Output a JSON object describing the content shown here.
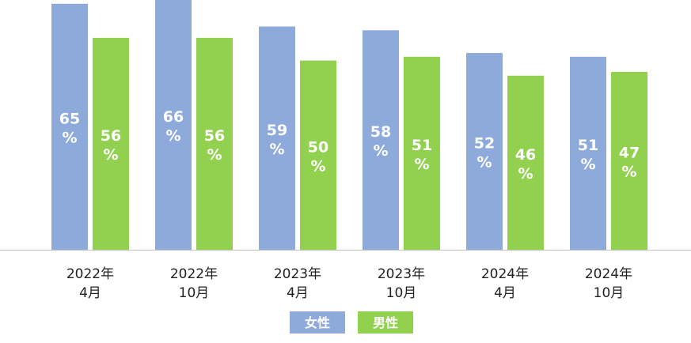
{
  "chart_data": {
    "type": "bar",
    "categories": [
      [
        "2022年",
        "4月"
      ],
      [
        "2022年",
        "10月"
      ],
      [
        "2023年",
        "4月"
      ],
      [
        "2023年",
        "10月"
      ],
      [
        "2024年",
        "4月"
      ],
      [
        "2024年",
        "10月"
      ]
    ],
    "series": [
      {
        "name": "女性",
        "color": "#8eaadb",
        "values": [
          65,
          66,
          59,
          58,
          52,
          51
        ]
      },
      {
        "name": "男性",
        "color": "#92d050",
        "values": [
          56,
          56,
          50,
          51,
          46,
          47
        ]
      }
    ],
    "value_suffix": "%",
    "ylim": [
      0,
      66
    ],
    "legend_position": "bottom",
    "grid": false
  }
}
